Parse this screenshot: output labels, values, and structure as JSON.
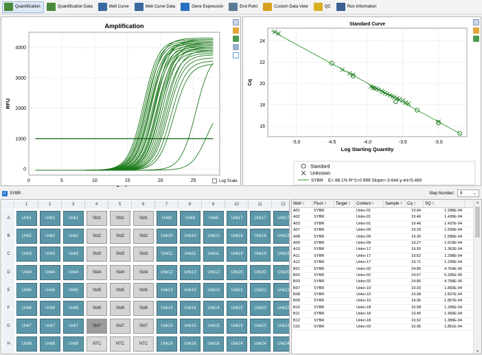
{
  "toolbar": {
    "tabs": [
      {
        "label": "Quantification",
        "icon": "amplification-chart-icon",
        "color": "#4a8a3a",
        "active": true
      },
      {
        "label": "Quantification Data",
        "icon": "data-chart-icon",
        "color": "#4a8a3a"
      },
      {
        "label": "Melt Curve",
        "icon": "melt-curve-icon",
        "color": "#3a6aa0"
      },
      {
        "label": "Melt Curve Data",
        "icon": "melt-data-icon",
        "color": "#3a6aa0"
      },
      {
        "label": "Gene Expression",
        "icon": "bar-chart-icon",
        "color": "#2a6fc0"
      },
      {
        "label": "End Point",
        "icon": "end-point-icon",
        "color": "#5a7a9a"
      },
      {
        "label": "Custom Data View",
        "icon": "custom-view-icon",
        "color": "#d8a020"
      },
      {
        "label": "QC",
        "icon": "qc-icon",
        "color": "#d8b020"
      },
      {
        "label": "Run Information",
        "icon": "run-info-icon",
        "color": "#3a5f90"
      }
    ]
  },
  "amplification": {
    "title": "Amplification",
    "xlabel": "Cycles",
    "ylabel": "RFU",
    "log_scale_label": "Log Scale",
    "xticks": [
      "0",
      "5",
      "10",
      "15",
      "20",
      "25"
    ],
    "yticks": [
      "0",
      "1000",
      "2000",
      "3000",
      "4000"
    ]
  },
  "standard_curve": {
    "title": "Standard Curve",
    "xlabel": "Log Starting Quantity",
    "ylabel": "Cq",
    "xticks": [
      "-5.0",
      "-4.5",
      "-4.0",
      "-3.5",
      "-3.0"
    ],
    "yticks": [
      "16",
      "18",
      "20",
      "22",
      "24"
    ],
    "legend": {
      "standard": "Standard",
      "unknown": "Unknown",
      "line_label": "SYBR",
      "stats": "E= 88.1% R^2=0.999 Slope=-3.644 y-int=5.460"
    }
  },
  "chart_data": [
    {
      "type": "line",
      "title": "Amplification",
      "xlabel": "Cycles",
      "ylabel": "RFU",
      "xlim": [
        0,
        29
      ],
      "ylim": [
        -200,
        4500
      ],
      "grid": true,
      "threshold": 1000,
      "series_color": "#1a7a1a",
      "curves_midpoints": [
        17.4,
        17.6,
        17.8,
        18.0,
        18.1,
        18.3,
        18.5,
        18.6,
        18.8,
        19.0,
        19.1,
        19.2,
        19.4,
        19.6,
        19.7,
        19.9,
        20.1,
        20.3,
        20.5,
        20.8,
        21.0,
        21.2,
        21.6,
        22.0
      ],
      "curves_plateau": [
        4300,
        4250,
        4200,
        4350,
        4150,
        4100,
        4250,
        4200,
        4050,
        4000,
        4300,
        4150,
        3950,
        4100,
        4000,
        3900,
        4200,
        4050,
        3850,
        3950,
        3800,
        3700,
        3600,
        3500
      ],
      "late_curves": [
        {
          "mid": 25.4,
          "top": 3900
        },
        {
          "mid": 27.0,
          "top": 2200
        }
      ]
    },
    {
      "type": "scatter",
      "title": "Standard Curve",
      "xlabel": "Log Starting Quantity",
      "ylabel": "Cq",
      "xlim": [
        -5.4,
        -2.6
      ],
      "ylim": [
        15,
        25.2
      ],
      "standard": [
        {
          "x": -4.5,
          "y": 21.9
        },
        {
          "x": -4.2,
          "y": 20.7
        },
        {
          "x": -3.6,
          "y": 18.3
        },
        {
          "x": -3.3,
          "y": 17.5
        },
        {
          "x": -3.0,
          "y": 16.3
        },
        {
          "x": -2.7,
          "y": 15.3
        }
      ],
      "unknown": [
        {
          "x": -5.3,
          "y": 24.85
        },
        {
          "x": -5.25,
          "y": 24.7
        },
        {
          "x": -4.35,
          "y": 21.3
        },
        {
          "x": -4.25,
          "y": 20.95
        },
        {
          "x": -4.2,
          "y": 20.8
        },
        {
          "x": -3.95,
          "y": 19.7
        },
        {
          "x": -3.92,
          "y": 19.6
        },
        {
          "x": -3.9,
          "y": 19.55
        },
        {
          "x": -3.87,
          "y": 19.5
        },
        {
          "x": -3.84,
          "y": 19.4
        },
        {
          "x": -3.8,
          "y": 19.3
        },
        {
          "x": -3.78,
          "y": 19.2
        },
        {
          "x": -3.75,
          "y": 19.1
        },
        {
          "x": -3.72,
          "y": 19.0
        },
        {
          "x": -3.68,
          "y": 18.9
        },
        {
          "x": -3.65,
          "y": 18.8
        },
        {
          "x": -3.62,
          "y": 18.7
        },
        {
          "x": -3.58,
          "y": 18.6
        },
        {
          "x": -3.55,
          "y": 18.5
        },
        {
          "x": -3.5,
          "y": 18.4
        },
        {
          "x": -3.46,
          "y": 18.2
        },
        {
          "x": -3.42,
          "y": 18.1
        },
        {
          "x": -3.0,
          "y": 16.4
        }
      ],
      "fit": {
        "slope": -3.644,
        "intercept": 5.46
      }
    }
  ],
  "sybr": {
    "label": "SYBR"
  },
  "step": {
    "label": "Step Number:",
    "value": "9"
  },
  "plate": {
    "cols": [
      "1",
      "2",
      "3",
      "4",
      "5",
      "6",
      "7",
      "8",
      "9",
      "10",
      "11",
      "12"
    ],
    "rows": [
      "A",
      "B",
      "C",
      "D",
      "E",
      "F",
      "G",
      "H"
    ],
    "wells": [
      [
        "Unk1",
        "Unk1",
        "Unk1",
        "Std1",
        "Std1",
        "Std1",
        "Unk9",
        "Unk9",
        "Unk9",
        "Unk17",
        "Unk17",
        "Unk17"
      ],
      [
        "Unk2",
        "Unk2",
        "Unk2",
        "Std2",
        "Std2",
        "Std2",
        "Unk10",
        "Unk10",
        "Unk10",
        "Unk18",
        "Unk18",
        "Unk18"
      ],
      [
        "Unk3",
        "Unk3",
        "Unk3",
        "Std3",
        "Std3",
        "Std3",
        "Unk11",
        "Unk11",
        "Unk11",
        "Unk19",
        "Unk19",
        "Unk19"
      ],
      [
        "Unk4",
        "Unk4",
        "Unk4",
        "Std4",
        "Std4",
        "Std4",
        "Unk12",
        "Unk12",
        "Unk12",
        "Unk20",
        "Unk20",
        "Unk20"
      ],
      [
        "Unk5",
        "Unk5",
        "Unk5",
        "Std5",
        "Std5",
        "Std5",
        "Unk13",
        "Unk13",
        "Unk13",
        "Unk21",
        "Unk21",
        "Unk21"
      ],
      [
        "Unk6",
        "Unk6",
        "Unk6",
        "Std6",
        "Std6",
        "Std6",
        "Unk14",
        "Unk14",
        "Unk14",
        "Unk22",
        "Unk22",
        "Unk22"
      ],
      [
        "Unk7",
        "Unk7",
        "Unk7",
        "Std7",
        "Std7",
        "Std7",
        "Unk15",
        "Unk15",
        "Unk15",
        "Unk23",
        "Unk23",
        "Unk23"
      ],
      [
        "Unk8",
        "Unk8",
        "Unk8",
        "NTC",
        "NTC",
        "NTC",
        "Unk16",
        "Unk16",
        "Unk16",
        "Unk24",
        "Unk24",
        "Unk24"
      ]
    ],
    "selected": "G4"
  },
  "table": {
    "headers": [
      "Well",
      "Fluor",
      "Target",
      "Content",
      "Sample",
      "Cq",
      "SQ"
    ],
    "rows": [
      [
        "A01",
        "SYBR",
        "",
        "Unkn-01",
        "",
        "19.64",
        "1.288E-04"
      ],
      [
        "A02",
        "SYBR",
        "",
        "Unkn-01",
        "",
        "19.46",
        "1.439E-04"
      ],
      [
        "A03",
        "SYBR",
        "",
        "Unkn-01",
        "",
        "19.46",
        "1.437E-04"
      ],
      [
        "A07",
        "SYBR",
        "",
        "Unkn-09",
        "",
        "19.29",
        "1.599E-04"
      ],
      [
        "A08",
        "SYBR",
        "",
        "Unkn-09",
        "",
        "19.30",
        "1.589E-04"
      ],
      [
        "A09",
        "SYBR",
        "",
        "Unkn-09",
        "",
        "19.27",
        "1.619E-04"
      ],
      [
        "A10",
        "SYBR",
        "",
        "Unkn-17",
        "",
        "19.55",
        "1.362E-04"
      ],
      [
        "A11",
        "SYBR",
        "",
        "Unkn-17",
        "",
        "19.62",
        "1.298E-04"
      ],
      [
        "A12",
        "SYBR",
        "",
        "Unkn-17",
        "",
        "19.71",
        "1.230E-04"
      ],
      [
        "B01",
        "SYBR",
        "",
        "Unkn-02",
        "",
        "24.85",
        "4.764E-06"
      ],
      [
        "B02",
        "SYBR",
        "",
        "Unkn-02",
        "",
        "24.67",
        "5.335E-06"
      ],
      [
        "B03",
        "SYBR",
        "",
        "Unkn-02",
        "",
        "24.86",
        "4.758E-06"
      ],
      [
        "B07",
        "SYBR",
        "",
        "Unkn-10",
        "",
        "19.03",
        "1.893E-04"
      ],
      [
        "B08",
        "SYBR",
        "",
        "Unkn-10",
        "",
        "19.08",
        "1.827E-04"
      ],
      [
        "B09",
        "SYBR",
        "",
        "Unkn-10",
        "",
        "19.06",
        "1.857E-04"
      ],
      [
        "B10",
        "SYBR",
        "",
        "Unkn-18",
        "",
        "19.58",
        "1.335E-04"
      ],
      [
        "B11",
        "SYBR",
        "",
        "Unkn-18",
        "",
        "19.45",
        "1.450E-04"
      ],
      [
        "B12",
        "SYBR",
        "",
        "Unkn-18",
        "",
        "19.52",
        "1.389E-04"
      ],
      [
        "C01",
        "SYBR",
        "",
        "Unkn-03",
        "",
        "19.06",
        "1.851E-04"
      ]
    ]
  }
}
